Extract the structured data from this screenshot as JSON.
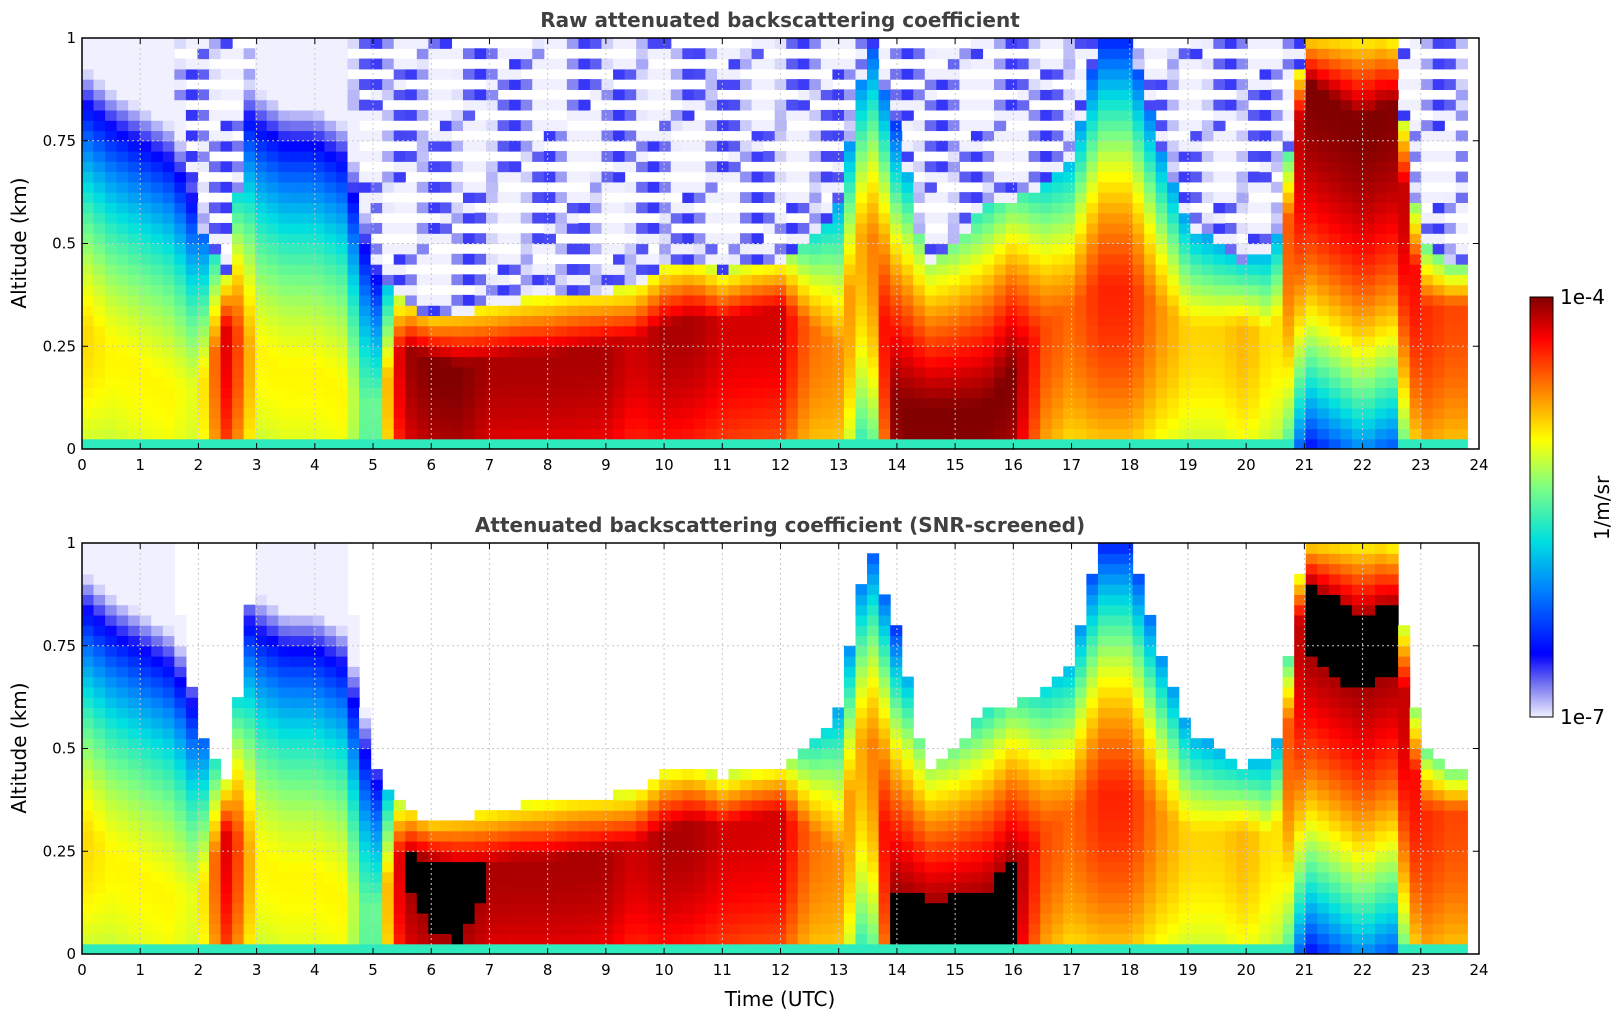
{
  "chart_data": [
    {
      "type": "heatmap",
      "title": "Raw attenuated backscattering coefficient",
      "ylabel": "Altitude (km)",
      "xlabel": "",
      "xlim": [
        0,
        24
      ],
      "ylim": [
        0,
        1
      ],
      "x_ticks": [
        "0",
        "1",
        "2",
        "3",
        "4",
        "5",
        "6",
        "7",
        "8",
        "9",
        "10",
        "11",
        "12",
        "13",
        "14",
        "15",
        "16",
        "17",
        "18",
        "19",
        "20",
        "21",
        "22",
        "23",
        "24"
      ],
      "y_ticks": [
        "0",
        "0.25",
        "0.5",
        "0.75",
        "1"
      ],
      "y_tick_values": [
        0,
        0.25,
        0.5,
        0.75,
        1
      ],
      "grid": true,
      "screened": false,
      "time_utc": [
        0,
        0.5,
        1,
        1.5,
        2,
        2.5,
        3,
        3.5,
        4,
        4.5,
        5,
        5.5,
        6,
        6.5,
        7,
        7.5,
        8,
        8.5,
        9,
        9.5,
        10,
        10.5,
        11,
        11.5,
        12,
        12.5,
        13,
        13.5,
        14,
        14.5,
        15,
        15.5,
        16,
        16.5,
        17,
        17.5,
        18,
        18.5,
        19,
        19.5,
        20,
        20.5,
        21,
        21.5,
        22,
        22.5,
        23,
        23.5
      ],
      "layer_top_km": [
        1,
        1,
        1,
        1,
        0.55,
        0.42,
        1,
        1,
        1,
        1,
        0.45,
        0.36,
        0.32,
        0.33,
        0.35,
        0.36,
        0.37,
        0.38,
        0.38,
        0.4,
        0.44,
        0.45,
        0.43,
        0.45,
        0.46,
        0.5,
        0.6,
        1,
        0.8,
        0.45,
        0.5,
        0.6,
        0.6,
        0.65,
        0.7,
        1,
        1,
        0.75,
        0.55,
        0.5,
        0.45,
        0.5,
        1,
        1,
        1,
        1,
        0.5,
        0.45
      ],
      "peak_altitude_km": [
        0.3,
        0.25,
        0.2,
        0.15,
        0.15,
        0.3,
        0.25,
        0.2,
        0.2,
        0.15,
        0.1,
        0.25,
        0.22,
        0.2,
        0.22,
        0.23,
        0.23,
        0.24,
        0.25,
        0.27,
        0.3,
        0.32,
        0.31,
        0.33,
        0.34,
        0.3,
        0.25,
        0.6,
        0.1,
        0.1,
        0.1,
        0.1,
        0.2,
        0.3,
        0.35,
        0.4,
        0.4,
        0.35,
        0.3,
        0.3,
        0.3,
        0.28,
        0.9,
        0.85,
        0.8,
        0.85,
        0.35,
        0.35
      ],
      "peak_log10_beta": [
        -4.9,
        -5.0,
        -5.0,
        -5.0,
        -5.1,
        -4.2,
        -5.0,
        -5.0,
        -5.0,
        -5.0,
        -5.6,
        -4.1,
        -4.0,
        -4.0,
        -4.1,
        -4.1,
        -4.1,
        -4.1,
        -4.1,
        -4.2,
        -4.1,
        -4.1,
        -4.2,
        -4.2,
        -4.2,
        -4.6,
        -4.7,
        -4.8,
        -4.0,
        -4.0,
        -4.0,
        -4.0,
        -4.0,
        -4.5,
        -4.6,
        -4.4,
        -4.4,
        -4.7,
        -4.9,
        -4.9,
        -4.8,
        -5.0,
        -4.0,
        -4.0,
        -4.0,
        -4.0,
        -4.4,
        -4.5
      ],
      "colorbar": {
        "min": "1e-7",
        "max": "1e-4",
        "label": "1/m/sr",
        "scale": "log"
      }
    },
    {
      "type": "heatmap",
      "title": "Attenuated backscattering coefficient (SNR-screened)",
      "ylabel": "Altitude (km)",
      "xlabel": "Time (UTC)",
      "xlim": [
        0,
        24
      ],
      "ylim": [
        0,
        1
      ],
      "x_ticks": [
        "0",
        "1",
        "2",
        "3",
        "4",
        "5",
        "6",
        "7",
        "8",
        "9",
        "10",
        "11",
        "12",
        "13",
        "14",
        "15",
        "16",
        "17",
        "18",
        "19",
        "20",
        "21",
        "22",
        "23",
        "24"
      ],
      "y_ticks": [
        "0",
        "0.25",
        "0.5",
        "0.75",
        "1"
      ],
      "y_tick_values": [
        0,
        0.25,
        0.5,
        0.75,
        1
      ],
      "grid": true,
      "screened": true,
      "saturated_color": "#000000",
      "colorbar": {
        "min": "1e-7",
        "max": "1e-4",
        "label": "1/m/sr",
        "scale": "log"
      }
    }
  ],
  "colorbar": {
    "top_label": "1e-4",
    "bottom_label": "1e-7",
    "label": "1/m/sr"
  }
}
